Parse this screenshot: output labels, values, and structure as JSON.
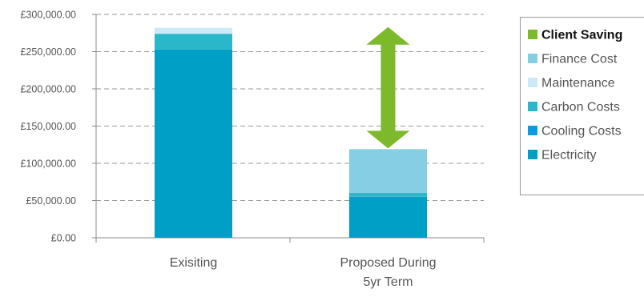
{
  "chart_data": {
    "type": "bar",
    "stacked": true,
    "categories": [
      "Exisiting",
      "Proposed During 5yr Term"
    ],
    "category_label_lines": [
      [
        "Exisiting"
      ],
      [
        "Proposed During",
        "5yr Term"
      ]
    ],
    "series": [
      {
        "name": "Electricity",
        "values": [
          253000,
          55000
        ],
        "color": "#009fc6"
      },
      {
        "name": "Cooling Costs",
        "values": [
          0,
          0
        ],
        "color": "#0a9be0"
      },
      {
        "name": "Carbon Costs",
        "values": [
          21000,
          5500
        ],
        "color": "#2ab7c9"
      },
      {
        "name": "Maintenance",
        "values": [
          8000,
          0
        ],
        "color": "#cce9f7"
      },
      {
        "name": "Finance Cost",
        "values": [
          0,
          58500
        ],
        "color": "#86cee3"
      }
    ],
    "annotation": {
      "name": "Client Saving",
      "from": 119000,
      "to": 283000,
      "color": "#7dba2b",
      "category_index": 1
    },
    "ylim": [
      0,
      300000
    ],
    "yticks": [
      0,
      50000,
      100000,
      150000,
      200000,
      250000,
      300000
    ],
    "ytick_labels": [
      "£0.00",
      "£50,000.00",
      "£100,000.00",
      "£150,000.00",
      "£200,000.00",
      "£250,000.00",
      "£300,000.00"
    ],
    "grid": true,
    "legend_position": "right",
    "legend": [
      {
        "label": "Client Saving",
        "color": "#7dba2b",
        "bold": true
      },
      {
        "label": "Finance Cost",
        "color": "#86cee3"
      },
      {
        "label": "Maintenance",
        "color": "#cce9f7"
      },
      {
        "label": "Carbon Costs",
        "color": "#2ab7c9"
      },
      {
        "label": "Cooling Costs",
        "color": "#0a9be0"
      },
      {
        "label": "Electricity",
        "color": "#009fc6"
      }
    ],
    "title": "",
    "xlabel": "",
    "ylabel": ""
  }
}
